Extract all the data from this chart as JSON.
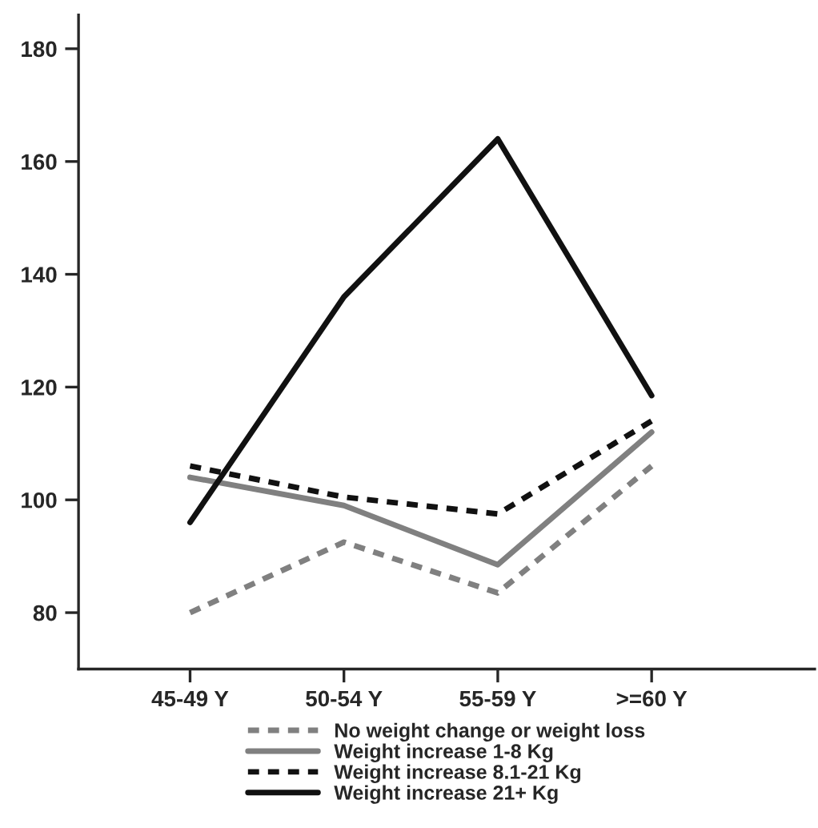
{
  "chart_data": {
    "type": "line",
    "categories": [
      "45-49 Y",
      "50-54 Y",
      "55-59 Y",
      ">=60 Y"
    ],
    "ylim": [
      70,
      186
    ],
    "yticks": [
      80,
      100,
      120,
      140,
      160,
      180
    ],
    "grid": false,
    "legend": "bottom",
    "marker": "none",
    "series": [
      {
        "name": "No weight change or weight loss",
        "color": "#808080",
        "line_style": "dashed",
        "values": [
          80,
          92.5,
          83.5,
          106
        ]
      },
      {
        "name": "Weight increase 1-8 Kg",
        "color": "#808080",
        "line_style": "solid",
        "values": [
          104,
          99,
          88.5,
          112
        ]
      },
      {
        "name": "Weight increase 8.1-21 Kg",
        "color": "#111111",
        "line_style": "dashed",
        "values": [
          106,
          100.5,
          97.5,
          114
        ]
      },
      {
        "name": "Weight increase 21+ Kg",
        "color": "#111111",
        "line_style": "solid",
        "values": [
          96,
          136,
          164,
          118.5
        ]
      }
    ]
  }
}
